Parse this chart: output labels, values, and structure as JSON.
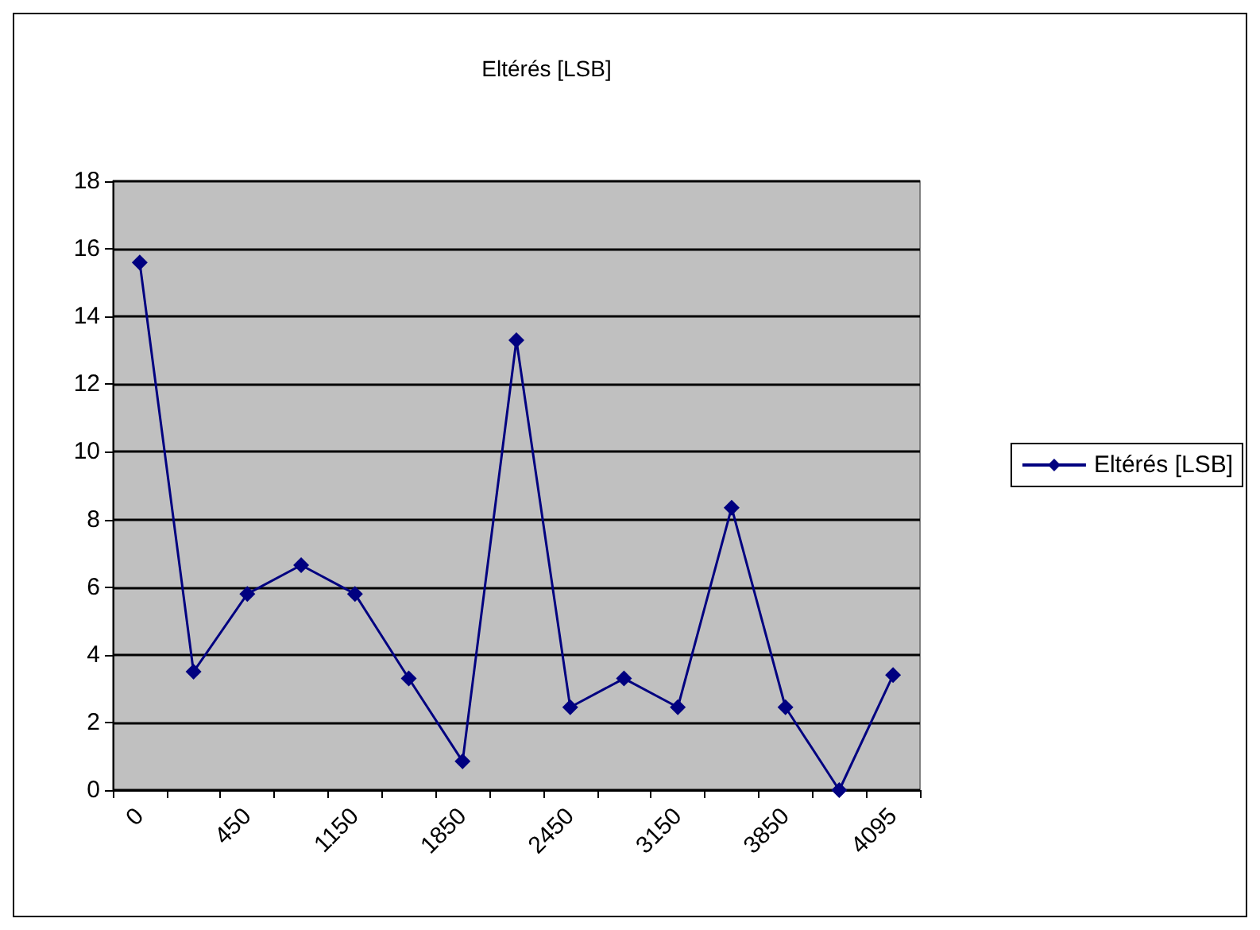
{
  "chart_data": {
    "type": "line",
    "title": "Eltérés [LSB]",
    "categories": [
      "0",
      null,
      "450",
      null,
      "1150",
      null,
      "1850",
      null,
      "2450",
      null,
      "3150",
      null,
      "3850",
      null,
      "4095"
    ],
    "series": [
      {
        "name": "Eltérés [LSB]",
        "color": "#000080",
        "values": [
          15.6,
          3.5,
          5.8,
          6.65,
          5.8,
          3.3,
          0.85,
          13.3,
          2.45,
          3.3,
          2.45,
          8.35,
          2.45,
          0,
          3.4
        ]
      }
    ],
    "ylim": [
      0,
      18
    ],
    "yticks": [
      0,
      2,
      4,
      6,
      8,
      10,
      12,
      14,
      16,
      18
    ],
    "grid": "y",
    "legend": "right",
    "marker": "diamond",
    "line_style": "solid"
  }
}
